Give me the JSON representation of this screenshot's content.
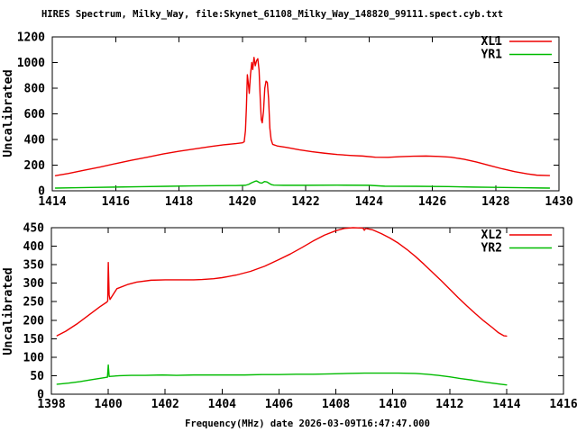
{
  "title": "HIRES Spectrum, Milky_Way, file:Skynet_61108_Milky_Way_148820_99111.spect.cyb.txt",
  "xlabel": "Frequency(MHz) date 2026-03-09T16:47:47.000",
  "ylabel": "Uncalibrated",
  "colors": {
    "background": "#ffffff",
    "axis": "#000000",
    "text": "#000000",
    "series_red": "#ee0000",
    "series_green": "#00bb00"
  },
  "chart_data": [
    {
      "type": "line",
      "panel": "top",
      "ylabel": "Uncalibrated",
      "xlim": [
        1414,
        1430
      ],
      "ylim": [
        0,
        1200
      ],
      "xticks": [
        1414,
        1416,
        1418,
        1420,
        1422,
        1424,
        1426,
        1428,
        1430
      ],
      "yticks": [
        0,
        200,
        400,
        600,
        800,
        1000,
        1200
      ],
      "grid": false,
      "legend_position": "top-right-inside",
      "series": [
        {
          "name": "XL1",
          "color": "#ee0000",
          "points": [
            [
              1414.1,
              118
            ],
            [
              1414.5,
              135
            ],
            [
              1415,
              160
            ],
            [
              1415.5,
              185
            ],
            [
              1416,
              212
            ],
            [
              1416.5,
              238
            ],
            [
              1417,
              262
            ],
            [
              1417.5,
              287
            ],
            [
              1418,
              308
            ],
            [
              1418.5,
              327
            ],
            [
              1419,
              345
            ],
            [
              1419.4,
              358
            ],
            [
              1419.8,
              368
            ],
            [
              1420,
              374
            ],
            [
              1420.06,
              382
            ],
            [
              1420.1,
              470
            ],
            [
              1420.13,
              650
            ],
            [
              1420.16,
              905
            ],
            [
              1420.19,
              840
            ],
            [
              1420.22,
              760
            ],
            [
              1420.26,
              910
            ],
            [
              1420.3,
              1000
            ],
            [
              1420.33,
              945
            ],
            [
              1420.37,
              1040
            ],
            [
              1420.41,
              975
            ],
            [
              1420.45,
              1015
            ],
            [
              1420.49,
              1030
            ],
            [
              1420.53,
              940
            ],
            [
              1420.57,
              700
            ],
            [
              1420.6,
              555
            ],
            [
              1420.63,
              530
            ],
            [
              1420.67,
              620
            ],
            [
              1420.71,
              800
            ],
            [
              1420.75,
              855
            ],
            [
              1420.79,
              845
            ],
            [
              1420.83,
              720
            ],
            [
              1420.87,
              490
            ],
            [
              1420.91,
              400
            ],
            [
              1420.96,
              362
            ],
            [
              1421.1,
              350
            ],
            [
              1421.4,
              338
            ],
            [
              1421.8,
              320
            ],
            [
              1422.2,
              305
            ],
            [
              1422.6,
              293
            ],
            [
              1423,
              283
            ],
            [
              1423.4,
              276
            ],
            [
              1423.8,
              271
            ],
            [
              1424.2,
              262
            ],
            [
              1424.6,
              261
            ],
            [
              1425,
              266
            ],
            [
              1425.4,
              270
            ],
            [
              1425.8,
              271
            ],
            [
              1426.2,
              268
            ],
            [
              1426.6,
              262
            ],
            [
              1427,
              246
            ],
            [
              1427.4,
              224
            ],
            [
              1427.8,
              198
            ],
            [
              1428.2,
              172
            ],
            [
              1428.6,
              150
            ],
            [
              1429,
              132
            ],
            [
              1429.3,
              122
            ],
            [
              1429.7,
              119
            ]
          ]
        },
        {
          "name": "YR1",
          "color": "#00bb00",
          "points": [
            [
              1414.1,
              21
            ],
            [
              1414.6,
              23
            ],
            [
              1415.2,
              26
            ],
            [
              1416,
              29
            ],
            [
              1416.8,
              32
            ],
            [
              1417.6,
              35
            ],
            [
              1418.4,
              38
            ],
            [
              1419.2,
              40
            ],
            [
              1419.8,
              41
            ],
            [
              1420.1,
              43
            ],
            [
              1420.2,
              50
            ],
            [
              1420.3,
              63
            ],
            [
              1420.4,
              74
            ],
            [
              1420.45,
              77
            ],
            [
              1420.5,
              70
            ],
            [
              1420.55,
              63
            ],
            [
              1420.62,
              60
            ],
            [
              1420.7,
              72
            ],
            [
              1420.78,
              69
            ],
            [
              1420.85,
              58
            ],
            [
              1420.92,
              48
            ],
            [
              1421,
              44
            ],
            [
              1421.3,
              43
            ],
            [
              1422,
              43
            ],
            [
              1423,
              44
            ],
            [
              1424,
              43
            ],
            [
              1424.5,
              36
            ],
            [
              1425.5,
              35
            ],
            [
              1426.5,
              33
            ],
            [
              1427.3,
              29
            ],
            [
              1428,
              27
            ],
            [
              1428.8,
              24
            ],
            [
              1429.4,
              22
            ],
            [
              1429.7,
              21
            ]
          ]
        }
      ]
    },
    {
      "type": "line",
      "panel": "bottom",
      "ylabel": "Uncalibrated",
      "xlabel": "Frequency(MHz) date 2026-03-09T16:47:47.000",
      "xlim": [
        1398,
        1416
      ],
      "ylim": [
        0,
        450
      ],
      "xticks": [
        1398,
        1400,
        1402,
        1404,
        1406,
        1408,
        1410,
        1412,
        1414,
        1416
      ],
      "yticks": [
        0,
        50,
        100,
        150,
        200,
        250,
        300,
        350,
        400,
        450
      ],
      "grid": false,
      "legend_position": "top-right-inside",
      "series": [
        {
          "name": "XL2",
          "color": "#ee0000",
          "points": [
            [
              1398.2,
              158
            ],
            [
              1398.5,
              170
            ],
            [
              1398.9,
              190
            ],
            [
              1399.3,
              213
            ],
            [
              1399.7,
              236
            ],
            [
              1399.95,
              249
            ],
            [
              1399.98,
              252
            ],
            [
              1400,
              356
            ],
            [
              1400.03,
              268
            ],
            [
              1400.06,
              256
            ],
            [
              1400.3,
              285
            ],
            [
              1400.7,
              297
            ],
            [
              1401,
              303
            ],
            [
              1401.5,
              308
            ],
            [
              1402,
              309
            ],
            [
              1402.5,
              309
            ],
            [
              1403,
              309
            ],
            [
              1403.3,
              310
            ],
            [
              1403.7,
              312
            ],
            [
              1404,
              315
            ],
            [
              1404.5,
              322
            ],
            [
              1405,
              332
            ],
            [
              1405.5,
              346
            ],
            [
              1406,
              364
            ],
            [
              1406.4,
              379
            ],
            [
              1406.8,
              396
            ],
            [
              1407.2,
              414
            ],
            [
              1407.6,
              430
            ],
            [
              1408,
              442
            ],
            [
              1408.3,
              448
            ],
            [
              1408.6,
              450
            ],
            [
              1408.95,
              449
            ],
            [
              1409,
              443
            ],
            [
              1409.05,
              448
            ],
            [
              1409.3,
              444
            ],
            [
              1409.6,
              434
            ],
            [
              1409.9,
              422
            ],
            [
              1410.2,
              408
            ],
            [
              1410.5,
              391
            ],
            [
              1410.8,
              372
            ],
            [
              1411.1,
              351
            ],
            [
              1411.4,
              329
            ],
            [
              1411.7,
              307
            ],
            [
              1412,
              284
            ],
            [
              1412.3,
              261
            ],
            [
              1412.6,
              239
            ],
            [
              1412.9,
              218
            ],
            [
              1413.2,
              198
            ],
            [
              1413.5,
              180
            ],
            [
              1413.7,
              167
            ],
            [
              1413.9,
              158
            ],
            [
              1414,
              157
            ]
          ]
        },
        {
          "name": "YR2",
          "color": "#00bb00",
          "points": [
            [
              1398.2,
              27
            ],
            [
              1398.6,
              30
            ],
            [
              1399,
              34
            ],
            [
              1399.4,
              39
            ],
            [
              1399.8,
              44
            ],
            [
              1399.97,
              46
            ],
            [
              1400,
              79
            ],
            [
              1400.03,
              48
            ],
            [
              1400.4,
              50
            ],
            [
              1400.8,
              51
            ],
            [
              1401.3,
              51
            ],
            [
              1401.9,
              52
            ],
            [
              1402.4,
              51
            ],
            [
              1403,
              52
            ],
            [
              1403.6,
              52
            ],
            [
              1404.2,
              52
            ],
            [
              1404.8,
              52
            ],
            [
              1405.4,
              53
            ],
            [
              1406,
              53
            ],
            [
              1406.6,
              54
            ],
            [
              1407.2,
              54
            ],
            [
              1407.8,
              55
            ],
            [
              1408.4,
              56
            ],
            [
              1409,
              57
            ],
            [
              1409.6,
              57
            ],
            [
              1410.2,
              57
            ],
            [
              1410.8,
              56
            ],
            [
              1411.2,
              54
            ],
            [
              1411.6,
              51
            ],
            [
              1412,
              47
            ],
            [
              1412.4,
              42
            ],
            [
              1412.8,
              38
            ],
            [
              1413.2,
              33
            ],
            [
              1413.5,
              30
            ],
            [
              1413.8,
              27
            ],
            [
              1414,
              25
            ]
          ]
        }
      ]
    }
  ]
}
